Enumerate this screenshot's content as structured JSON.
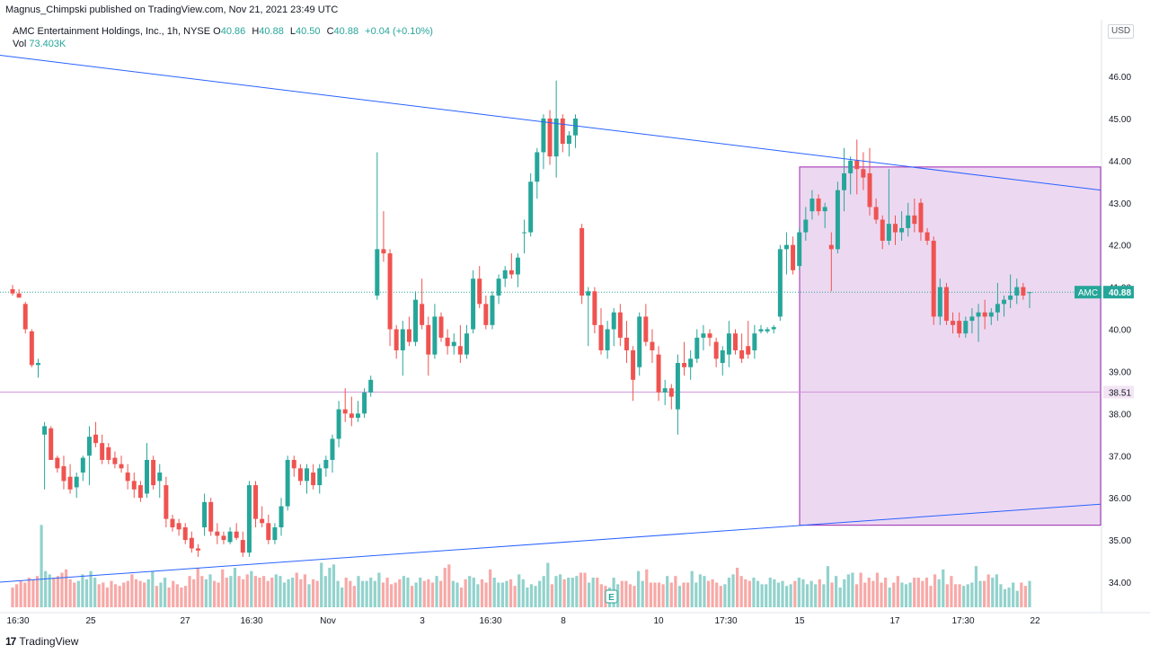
{
  "header": {
    "publish_text": "Magnus_Chimpski published on TradingView.com, Nov 21, 2021 23:49 UTC"
  },
  "legend": {
    "symbol_text": "AMC Entertainment Holdings, Inc., 1h, NYSE",
    "open_label": "O",
    "open": "40.86",
    "high_label": "H",
    "high": "40.88",
    "low_label": "L",
    "low": "40.50",
    "close_label": "C",
    "close": "40.88",
    "change": "+0.04 (+0.10%)",
    "vol_label": "Vol",
    "vol": "73.403K"
  },
  "currency_button": "USD",
  "price_badges": {
    "symbol_tag": "AMC",
    "last_price": "40.88",
    "level_price": "38.51"
  },
  "footer": {
    "brand": "TradingView"
  },
  "colors": {
    "up": "#26a69a",
    "down": "#ef5350",
    "trendline": "#2962ff",
    "box_fill": "#e1bee7",
    "box_border": "#9c27b0",
    "level_line": "#ce93d8",
    "last_price_line": "#26a69a"
  },
  "chart_data": {
    "type": "candlestick",
    "symbol": "AMC",
    "interval": "1h",
    "ylim": [
      33.5,
      46.8
    ],
    "y_ticks": [
      "46.00",
      "45.00",
      "44.00",
      "43.00",
      "42.00",
      "41.00",
      "40.00",
      "39.00",
      "38.00",
      "37.00",
      "36.00",
      "35.00",
      "34.00"
    ],
    "x_ticks": [
      "16:30",
      "25",
      "27",
      "16:30",
      "Nov",
      "3",
      "16:30",
      "8",
      "10",
      "17:30",
      "15",
      "17",
      "17:30",
      "22"
    ],
    "grid": false,
    "horizontal_level": 38.51,
    "last_price": 40.88,
    "earnings_marker": "E",
    "candles": [
      {
        "o": 40.95,
        "h": 41.05,
        "l": 40.8,
        "c": 40.85
      },
      {
        "o": 40.85,
        "h": 40.95,
        "l": 40.75,
        "c": 40.75
      },
      {
        "o": 40.6,
        "h": 40.65,
        "l": 39.9,
        "c": 40.0
      },
      {
        "o": 39.95,
        "h": 40.0,
        "l": 39.1,
        "c": 39.15
      },
      {
        "o": 39.15,
        "h": 39.3,
        "l": 38.85,
        "c": 39.2
      },
      {
        "o": 37.5,
        "h": 37.8,
        "l": 36.2,
        "c": 37.7
      },
      {
        "o": 37.65,
        "h": 37.7,
        "l": 36.9,
        "c": 36.9
      },
      {
        "o": 36.95,
        "h": 37.0,
        "l": 36.6,
        "c": 36.7
      },
      {
        "o": 36.75,
        "h": 37.0,
        "l": 36.2,
        "c": 36.4
      },
      {
        "o": 36.5,
        "h": 36.8,
        "l": 36.1,
        "c": 36.2
      },
      {
        "o": 36.25,
        "h": 36.6,
        "l": 36.0,
        "c": 36.5
      },
      {
        "o": 36.6,
        "h": 37.0,
        "l": 36.4,
        "c": 36.95
      },
      {
        "o": 37.0,
        "h": 37.7,
        "l": 36.3,
        "c": 37.45
      },
      {
        "o": 37.5,
        "h": 37.8,
        "l": 37.2,
        "c": 37.3
      },
      {
        "o": 37.3,
        "h": 37.5,
        "l": 36.8,
        "c": 36.9
      },
      {
        "o": 37.2,
        "h": 37.3,
        "l": 36.8,
        "c": 36.9
      },
      {
        "o": 36.95,
        "h": 37.1,
        "l": 36.7,
        "c": 36.8
      },
      {
        "o": 36.8,
        "h": 37.0,
        "l": 36.6,
        "c": 36.7
      },
      {
        "o": 36.6,
        "h": 36.8,
        "l": 36.2,
        "c": 36.4
      },
      {
        "o": 36.4,
        "h": 36.6,
        "l": 36.0,
        "c": 36.2
      },
      {
        "o": 36.3,
        "h": 36.4,
        "l": 35.9,
        "c": 36.0
      },
      {
        "o": 36.1,
        "h": 37.3,
        "l": 36.0,
        "c": 36.9
      },
      {
        "o": 36.9,
        "h": 37.0,
        "l": 36.2,
        "c": 36.3
      },
      {
        "o": 36.4,
        "h": 36.8,
        "l": 36.0,
        "c": 36.6
      },
      {
        "o": 36.3,
        "h": 36.5,
        "l": 35.3,
        "c": 35.5
      },
      {
        "o": 35.5,
        "h": 35.6,
        "l": 35.2,
        "c": 35.3
      },
      {
        "o": 35.4,
        "h": 35.5,
        "l": 35.1,
        "c": 35.25
      },
      {
        "o": 35.3,
        "h": 35.4,
        "l": 34.9,
        "c": 35.0
      },
      {
        "o": 35.05,
        "h": 35.2,
        "l": 34.7,
        "c": 34.8
      },
      {
        "o": 34.8,
        "h": 34.9,
        "l": 34.6,
        "c": 34.75
      },
      {
        "o": 35.3,
        "h": 36.1,
        "l": 35.1,
        "c": 35.9
      },
      {
        "o": 35.9,
        "h": 36.0,
        "l": 35.1,
        "c": 35.2
      },
      {
        "o": 35.2,
        "h": 35.4,
        "l": 34.9,
        "c": 35.1
      },
      {
        "o": 35.1,
        "h": 35.2,
        "l": 34.9,
        "c": 35.0
      },
      {
        "o": 34.95,
        "h": 35.3,
        "l": 34.9,
        "c": 35.2
      },
      {
        "o": 35.2,
        "h": 35.4,
        "l": 35.0,
        "c": 35.05
      },
      {
        "o": 35.0,
        "h": 35.2,
        "l": 34.6,
        "c": 34.7
      },
      {
        "o": 34.7,
        "h": 36.4,
        "l": 34.6,
        "c": 36.3
      },
      {
        "o": 36.3,
        "h": 36.4,
        "l": 35.3,
        "c": 35.5
      },
      {
        "o": 35.5,
        "h": 35.8,
        "l": 35.3,
        "c": 35.4
      },
      {
        "o": 35.4,
        "h": 35.6,
        "l": 34.9,
        "c": 35.0
      },
      {
        "o": 35.0,
        "h": 35.4,
        "l": 34.9,
        "c": 35.3
      },
      {
        "o": 35.3,
        "h": 36.0,
        "l": 35.1,
        "c": 35.8
      },
      {
        "o": 35.8,
        "h": 37.0,
        "l": 35.7,
        "c": 36.9
      },
      {
        "o": 36.9,
        "h": 37.0,
        "l": 36.5,
        "c": 36.7
      },
      {
        "o": 36.7,
        "h": 36.8,
        "l": 36.3,
        "c": 36.4
      },
      {
        "o": 36.4,
        "h": 36.8,
        "l": 36.1,
        "c": 36.7
      },
      {
        "o": 36.6,
        "h": 36.8,
        "l": 36.2,
        "c": 36.3
      },
      {
        "o": 36.3,
        "h": 36.8,
        "l": 36.1,
        "c": 36.7
      },
      {
        "o": 36.7,
        "h": 37.0,
        "l": 36.5,
        "c": 36.9
      },
      {
        "o": 36.9,
        "h": 37.5,
        "l": 36.6,
        "c": 37.4
      },
      {
        "o": 37.4,
        "h": 38.3,
        "l": 37.2,
        "c": 38.1
      },
      {
        "o": 38.1,
        "h": 38.6,
        "l": 37.8,
        "c": 38.0
      },
      {
        "o": 38.0,
        "h": 38.4,
        "l": 37.7,
        "c": 37.9
      },
      {
        "o": 37.9,
        "h": 38.3,
        "l": 37.8,
        "c": 38.0
      },
      {
        "o": 38.0,
        "h": 38.6,
        "l": 37.9,
        "c": 38.5
      },
      {
        "o": 38.5,
        "h": 38.9,
        "l": 38.4,
        "c": 38.8
      },
      {
        "o": 40.8,
        "h": 44.2,
        "l": 40.7,
        "c": 41.9
      },
      {
        "o": 41.9,
        "h": 42.8,
        "l": 41.6,
        "c": 41.8
      },
      {
        "o": 41.8,
        "h": 41.9,
        "l": 39.6,
        "c": 40.0
      },
      {
        "o": 40.0,
        "h": 40.1,
        "l": 39.3,
        "c": 39.5
      },
      {
        "o": 39.5,
        "h": 40.2,
        "l": 38.9,
        "c": 40.0
      },
      {
        "o": 40.0,
        "h": 40.3,
        "l": 39.6,
        "c": 39.7
      },
      {
        "o": 39.7,
        "h": 40.9,
        "l": 39.6,
        "c": 40.7
      },
      {
        "o": 40.6,
        "h": 41.2,
        "l": 40.0,
        "c": 40.1
      },
      {
        "o": 40.1,
        "h": 40.3,
        "l": 38.9,
        "c": 39.4
      },
      {
        "o": 39.4,
        "h": 40.6,
        "l": 39.3,
        "c": 40.3
      },
      {
        "o": 40.3,
        "h": 40.4,
        "l": 39.7,
        "c": 39.8
      },
      {
        "o": 39.8,
        "h": 40.0,
        "l": 39.4,
        "c": 39.6
      },
      {
        "o": 39.6,
        "h": 39.9,
        "l": 39.4,
        "c": 39.7
      },
      {
        "o": 39.6,
        "h": 40.1,
        "l": 39.2,
        "c": 39.4
      },
      {
        "o": 39.4,
        "h": 40.1,
        "l": 39.3,
        "c": 39.9
      },
      {
        "o": 40.0,
        "h": 41.4,
        "l": 39.9,
        "c": 41.2
      },
      {
        "o": 41.2,
        "h": 41.5,
        "l": 40.5,
        "c": 40.6
      },
      {
        "o": 40.6,
        "h": 40.8,
        "l": 40.0,
        "c": 40.1
      },
      {
        "o": 40.1,
        "h": 40.9,
        "l": 40.0,
        "c": 40.8
      },
      {
        "o": 40.8,
        "h": 41.3,
        "l": 40.6,
        "c": 41.2
      },
      {
        "o": 41.2,
        "h": 41.5,
        "l": 41.0,
        "c": 41.4
      },
      {
        "o": 41.4,
        "h": 41.8,
        "l": 41.2,
        "c": 41.3
      },
      {
        "o": 41.3,
        "h": 41.8,
        "l": 41.0,
        "c": 41.7
      },
      {
        "o": 42.3,
        "h": 42.6,
        "l": 41.8,
        "c": 42.3
      },
      {
        "o": 42.3,
        "h": 43.7,
        "l": 42.2,
        "c": 43.5
      },
      {
        "o": 43.5,
        "h": 44.3,
        "l": 43.1,
        "c": 44.2
      },
      {
        "o": 44.2,
        "h": 45.1,
        "l": 43.8,
        "c": 45.0
      },
      {
        "o": 45.0,
        "h": 45.2,
        "l": 43.9,
        "c": 44.1
      },
      {
        "o": 44.1,
        "h": 45.9,
        "l": 43.6,
        "c": 45.0
      },
      {
        "o": 45.0,
        "h": 45.1,
        "l": 44.2,
        "c": 44.4
      },
      {
        "o": 44.4,
        "h": 44.7,
        "l": 44.1,
        "c": 44.6
      },
      {
        "o": 44.6,
        "h": 45.1,
        "l": 44.3,
        "c": 45.0
      },
      {
        "o": 42.4,
        "h": 42.5,
        "l": 40.6,
        "c": 40.8
      },
      {
        "o": 40.8,
        "h": 41.0,
        "l": 39.6,
        "c": 40.9
      },
      {
        "o": 40.9,
        "h": 41.0,
        "l": 39.9,
        "c": 40.1
      },
      {
        "o": 40.1,
        "h": 40.5,
        "l": 39.4,
        "c": 39.5
      },
      {
        "o": 39.5,
        "h": 40.2,
        "l": 39.3,
        "c": 40.0
      },
      {
        "o": 40.0,
        "h": 40.5,
        "l": 39.6,
        "c": 40.4
      },
      {
        "o": 40.4,
        "h": 40.6,
        "l": 39.6,
        "c": 39.8
      },
      {
        "o": 39.8,
        "h": 40.2,
        "l": 39.2,
        "c": 39.5
      },
      {
        "o": 39.5,
        "h": 39.6,
        "l": 38.3,
        "c": 38.8
      },
      {
        "o": 39.1,
        "h": 40.4,
        "l": 38.9,
        "c": 40.3
      },
      {
        "o": 40.3,
        "h": 40.6,
        "l": 39.6,
        "c": 39.7
      },
      {
        "o": 39.7,
        "h": 40.0,
        "l": 39.2,
        "c": 39.5
      },
      {
        "o": 39.4,
        "h": 39.6,
        "l": 38.3,
        "c": 38.5
      },
      {
        "o": 38.5,
        "h": 38.8,
        "l": 38.2,
        "c": 38.6
      },
      {
        "o": 38.6,
        "h": 38.7,
        "l": 38.1,
        "c": 38.4
      },
      {
        "o": 38.1,
        "h": 39.4,
        "l": 37.5,
        "c": 39.2
      },
      {
        "o": 39.2,
        "h": 39.7,
        "l": 38.9,
        "c": 39.1
      },
      {
        "o": 39.1,
        "h": 39.5,
        "l": 38.8,
        "c": 39.3
      },
      {
        "o": 39.3,
        "h": 40.0,
        "l": 39.2,
        "c": 39.8
      },
      {
        "o": 39.8,
        "h": 40.1,
        "l": 39.5,
        "c": 39.9
      },
      {
        "o": 39.9,
        "h": 40.0,
        "l": 39.6,
        "c": 39.8
      },
      {
        "o": 39.7,
        "h": 39.8,
        "l": 39.1,
        "c": 39.3
      },
      {
        "o": 39.2,
        "h": 39.6,
        "l": 38.9,
        "c": 39.5
      },
      {
        "o": 39.4,
        "h": 40.2,
        "l": 39.1,
        "c": 39.9
      },
      {
        "o": 39.9,
        "h": 40.0,
        "l": 39.4,
        "c": 39.5
      },
      {
        "o": 39.5,
        "h": 39.9,
        "l": 39.2,
        "c": 39.3
      },
      {
        "o": 39.6,
        "h": 40.2,
        "l": 39.3,
        "c": 39.4
      },
      {
        "o": 39.5,
        "h": 40.1,
        "l": 39.3,
        "c": 39.9
      },
      {
        "o": 39.95,
        "h": 40.1,
        "l": 39.9,
        "c": 40.0
      },
      {
        "o": 39.95,
        "h": 40.05,
        "l": 39.9,
        "c": 40.0
      },
      {
        "o": 40.0,
        "h": 40.1,
        "l": 39.9,
        "c": 40.05
      },
      {
        "o": 40.3,
        "h": 42.0,
        "l": 40.2,
        "c": 41.9
      },
      {
        "o": 41.9,
        "h": 42.3,
        "l": 41.3,
        "c": 42.0
      },
      {
        "o": 42.0,
        "h": 42.2,
        "l": 41.3,
        "c": 41.4
      },
      {
        "o": 41.5,
        "h": 42.4,
        "l": 41.4,
        "c": 42.3
      },
      {
        "o": 42.3,
        "h": 42.9,
        "l": 42.1,
        "c": 42.6
      },
      {
        "o": 42.8,
        "h": 43.3,
        "l": 42.6,
        "c": 43.1
      },
      {
        "o": 43.1,
        "h": 43.2,
        "l": 42.7,
        "c": 42.8
      },
      {
        "o": 42.8,
        "h": 43.0,
        "l": 42.4,
        "c": 42.9
      },
      {
        "o": 42.0,
        "h": 42.3,
        "l": 40.9,
        "c": 41.9
      },
      {
        "o": 41.9,
        "h": 43.5,
        "l": 41.8,
        "c": 43.3
      },
      {
        "o": 43.3,
        "h": 44.3,
        "l": 42.8,
        "c": 43.7
      },
      {
        "o": 43.7,
        "h": 44.1,
        "l": 43.2,
        "c": 44.0
      },
      {
        "o": 44.0,
        "h": 44.5,
        "l": 43.2,
        "c": 43.8
      },
      {
        "o": 43.8,
        "h": 44.2,
        "l": 43.3,
        "c": 43.6
      },
      {
        "o": 43.7,
        "h": 44.3,
        "l": 42.7,
        "c": 42.9
      },
      {
        "o": 42.9,
        "h": 43.1,
        "l": 42.5,
        "c": 42.6
      },
      {
        "o": 42.6,
        "h": 42.7,
        "l": 41.9,
        "c": 42.1
      },
      {
        "o": 42.1,
        "h": 43.8,
        "l": 42.0,
        "c": 42.5
      },
      {
        "o": 42.5,
        "h": 42.7,
        "l": 42.0,
        "c": 42.3
      },
      {
        "o": 42.3,
        "h": 42.8,
        "l": 42.1,
        "c": 42.4
      },
      {
        "o": 42.4,
        "h": 43.0,
        "l": 42.2,
        "c": 42.7
      },
      {
        "o": 42.7,
        "h": 43.1,
        "l": 42.3,
        "c": 42.5
      },
      {
        "o": 43.0,
        "h": 43.1,
        "l": 42.1,
        "c": 42.3
      },
      {
        "o": 42.3,
        "h": 42.4,
        "l": 42.0,
        "c": 42.1
      },
      {
        "o": 42.1,
        "h": 42.2,
        "l": 40.1,
        "c": 40.3
      },
      {
        "o": 40.3,
        "h": 41.2,
        "l": 40.1,
        "c": 41.0
      },
      {
        "o": 41.0,
        "h": 41.1,
        "l": 40.1,
        "c": 40.2
      },
      {
        "o": 40.2,
        "h": 40.4,
        "l": 39.9,
        "c": 40.1
      },
      {
        "o": 40.2,
        "h": 40.4,
        "l": 39.8,
        "c": 39.9
      },
      {
        "o": 39.9,
        "h": 40.3,
        "l": 39.8,
        "c": 40.2
      },
      {
        "o": 40.2,
        "h": 40.5,
        "l": 39.9,
        "c": 40.3
      },
      {
        "o": 40.3,
        "h": 40.6,
        "l": 39.7,
        "c": 40.4
      },
      {
        "o": 40.4,
        "h": 40.7,
        "l": 40.0,
        "c": 40.3
      },
      {
        "o": 40.3,
        "h": 40.5,
        "l": 40.1,
        "c": 40.4
      },
      {
        "o": 40.4,
        "h": 41.1,
        "l": 40.2,
        "c": 40.6
      },
      {
        "o": 40.6,
        "h": 40.8,
        "l": 40.3,
        "c": 40.7
      },
      {
        "o": 40.7,
        "h": 41.3,
        "l": 40.5,
        "c": 40.8
      },
      {
        "o": 40.8,
        "h": 41.2,
        "l": 40.6,
        "c": 41.0
      },
      {
        "o": 41.0,
        "h": 41.1,
        "l": 40.7,
        "c": 40.8
      },
      {
        "o": 40.86,
        "h": 40.88,
        "l": 40.5,
        "c": 40.88
      }
    ],
    "volumes": [
      12,
      14,
      16,
      15,
      18,
      17,
      19,
      50,
      22,
      20,
      18,
      19,
      21,
      23,
      17,
      15,
      16,
      20,
      17,
      22,
      18,
      14,
      15,
      12,
      16,
      14,
      13,
      15,
      16,
      20,
      17,
      16,
      15,
      17,
      22,
      13,
      15,
      18,
      12,
      16,
      14,
      12,
      13,
      19,
      17,
      24,
      19,
      17,
      20,
      16,
      15,
      23,
      18,
      19,
      24,
      19,
      17,
      20,
      22,
      19,
      18,
      19,
      16,
      18,
      20,
      19,
      15,
      17,
      18,
      21,
      17,
      20,
      14,
      17,
      16,
      27,
      19,
      24,
      26,
      16,
      12,
      18,
      16,
      13,
      19,
      16,
      16,
      18,
      16,
      21,
      15,
      18,
      14,
      15,
      17,
      19,
      18,
      13,
      15,
      18,
      16,
      17,
      15,
      19,
      16,
      24,
      26,
      16,
      15,
      12,
      17,
      19,
      18,
      14,
      17,
      15,
      23,
      18,
      15,
      15,
      16,
      17,
      13,
      20,
      17,
      12,
      14,
      13,
      16,
      19,
      27,
      14,
      19,
      20,
      17,
      18,
      18,
      19,
      21,
      21,
      15,
      18,
      18,
      14,
      13,
      12,
      18,
      14,
      16,
      16,
      14,
      13,
      22,
      16,
      23,
      15,
      15,
      15,
      14,
      19,
      15,
      19,
      13,
      15,
      15,
      22,
      15,
      20,
      19,
      16,
      17,
      15,
      13,
      14,
      18,
      20,
      24,
      19,
      17,
      16,
      18,
      16,
      14,
      14,
      18,
      17,
      15,
      16,
      13,
      14,
      16,
      18,
      17,
      14,
      16,
      14,
      17,
      14,
      25,
      15,
      19,
      12,
      17,
      20,
      21,
      14,
      21,
      15,
      18,
      16,
      21,
      15,
      18,
      12,
      15,
      19,
      15,
      14,
      15,
      18,
      18,
      16,
      18,
      13,
      20,
      17,
      23,
      14,
      19,
      14,
      14,
      13,
      14,
      15,
      25,
      16,
      16,
      20,
      18,
      20,
      14,
      11,
      12,
      15,
      10,
      15,
      13,
      16
    ],
    "trendlines": [
      {
        "from": [
          0,
          46.5
        ],
        "to": [
          1,
          43.3
        ]
      },
      {
        "from": [
          0,
          34.0
        ],
        "to": [
          1,
          35.85
        ]
      }
    ],
    "box": {
      "y_top": 43.85,
      "y_bottom": 35.35
    }
  }
}
